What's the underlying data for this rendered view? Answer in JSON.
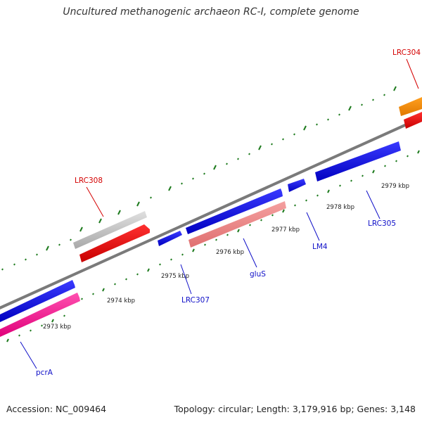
{
  "title": "Uncultured methanogenic archaeon RC-I, complete genome",
  "footer": {
    "accession": "Accession: NC_009464",
    "summary": "Topology: circular; Length: 3,179,916 bp; Genes: 3,148"
  },
  "colors": {
    "backbone": "#7a7a7a",
    "tick": "#1e7b1e",
    "label_red": "#d40000",
    "label_blue": "#1010c8"
  },
  "tick_labels": [
    "2973 kbp",
    "2974 kbp",
    "2975 kbp",
    "2976 kbp",
    "2977 kbp",
    "2978 kbp",
    "2979 kbp"
  ],
  "gene_labels": {
    "lrc304": "LRC304",
    "lrc308": "LRC308",
    "lrc307": "LRC307",
    "glus": "gluS",
    "lm4": "LM4",
    "lrc305": "LRC305",
    "pcra": "pcrA"
  }
}
